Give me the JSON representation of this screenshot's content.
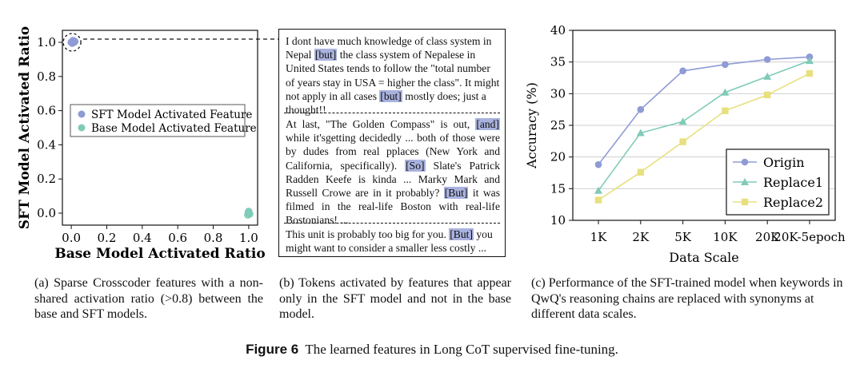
{
  "chart_data": [
    {
      "type": "scatter",
      "xlabel": "Base Model Activated Ratio",
      "ylabel": "SFT Model Activated Ratio",
      "xlim": [
        -0.05,
        1.05
      ],
      "ylim": [
        -0.07,
        1.07
      ],
      "xticks": [
        "0.0",
        "0.2",
        "0.4",
        "0.6",
        "0.8",
        "1.0"
      ],
      "yticks": [
        "0.0",
        "0.2",
        "0.4",
        "0.6",
        "0.8",
        "1.0"
      ],
      "legend": {
        "position": "center-left",
        "entries": [
          "SFT Model Activated Feature",
          "Base Model Activated Feature"
        ]
      },
      "series": [
        {
          "name": "SFT Model Activated Feature",
          "color": "#8e9bd4",
          "points": [
            [
              0.0,
              1.0
            ],
            [
              0.01,
              1.01
            ],
            [
              0.015,
              1.0
            ],
            [
              0.02,
              1.005
            ],
            [
              0.005,
              0.995
            ]
          ]
        },
        {
          "name": "Base Model Activated Feature",
          "color": "#7fcbb8",
          "points": [
            [
              1.0,
              0.0
            ],
            [
              0.995,
              -0.01
            ],
            [
              1.0,
              0.01
            ],
            [
              1.005,
              -0.005
            ],
            [
              0.998,
              0.005
            ]
          ]
        }
      ]
    },
    {
      "type": "line",
      "xlabel": "Data Scale",
      "ylabel": "Accuracy (%)",
      "categories": [
        "1K",
        "2K",
        "5K",
        "10K",
        "20K",
        "20K-5epoch"
      ],
      "ylim": [
        10,
        40
      ],
      "yticks": [
        "10",
        "15",
        "20",
        "25",
        "30",
        "35",
        "40"
      ],
      "grid": "horizontal",
      "legend": {
        "position": "bottom-right"
      },
      "series": [
        {
          "name": "Origin",
          "color": "#8e9bd4",
          "marker": "circle",
          "values": [
            18.8,
            27.5,
            33.6,
            34.6,
            35.4,
            35.8
          ]
        },
        {
          "name": "Replace1",
          "color": "#7fcbb8",
          "marker": "triangle",
          "values": [
            14.7,
            23.8,
            25.6,
            30.2,
            32.7,
            35.2
          ]
        },
        {
          "name": "Replace2",
          "color": "#e8e07e",
          "marker": "square",
          "values": [
            13.2,
            17.6,
            22.4,
            27.3,
            29.8,
            33.2
          ]
        }
      ]
    }
  ],
  "panel_b": {
    "sections": [
      [
        {
          "t": "I dont have much knowledge of class system in Nepal "
        },
        {
          "t": "[but]",
          "h": true
        },
        {
          "t": " the class system of Nepalese in United States tends to follow the \"total number of years stay in USA = higher the class\". It might not apply in all cases "
        },
        {
          "t": "[but]",
          "h": true
        },
        {
          "t": " mostly does; just a thought!!"
        }
      ],
      [
        {
          "t": "At last, \"The Golden Compass\" is out, "
        },
        {
          "t": "[and]",
          "h": true
        },
        {
          "t": " while it'sgetting decidedly ... both of those were by dudes from real pplaces (New York and California, specifically). "
        },
        {
          "t": "[So]",
          "h": true
        },
        {
          "t": " Slate's Patrick Radden Keefe is kinda ... Marky Mark and Russell Crowe are in it probably? "
        },
        {
          "t": "[But]",
          "h": true
        },
        {
          "t": " it was filmed in the real-life Boston with real-life Bostonians! ..."
        }
      ],
      [
        {
          "t": "This unit is probably too big for you. "
        },
        {
          "t": "[But]",
          "h": true
        },
        {
          "t": " you might want to consider a smaller less costly ..."
        }
      ]
    ]
  },
  "captions": {
    "a": "(a) Sparse Crosscoder features with a non-shared activation ratio (>0.8) between the base and SFT models.",
    "b": "(b) Tokens activated by features that appear only in the SFT model and not in the base model.",
    "c": "(c) Performance of the SFT-trained model when keywords in QwQ's reasoning chains are replaced with synonyms at different data scales."
  },
  "figure": {
    "label": "Figure 6",
    "text": "The learned features in Long CoT supervised fine-tuning."
  }
}
